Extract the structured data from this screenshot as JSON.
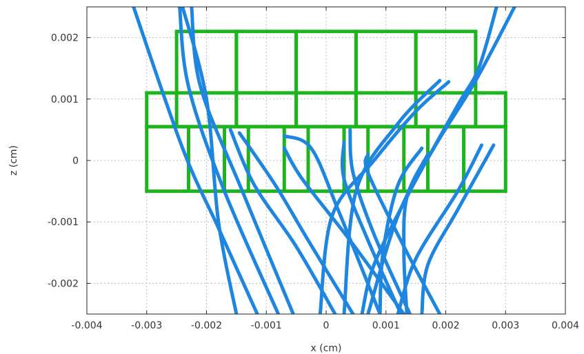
{
  "chart_data": {
    "type": "line",
    "title": "",
    "xlabel": "x (cm)",
    "ylabel": "z (cm)",
    "xlim": [
      -0.004,
      0.004
    ],
    "ylim": [
      -0.0025,
      0.0025
    ],
    "x_ticks": [
      -0.004,
      -0.003,
      -0.002,
      -0.001,
      0,
      0.001,
      0.002,
      0.003,
      0.004
    ],
    "x_tick_labels": [
      "-0.004",
      "-0.003",
      "-0.002",
      "-0.001",
      "0",
      "0.001",
      "0.002",
      "0.003",
      "0.004"
    ],
    "y_ticks": [
      0.002,
      0.001,
      0,
      -0.001,
      -0.002
    ],
    "y_tick_labels": [
      "0.002",
      "0.001",
      "0",
      "-0.001",
      "-0.002"
    ],
    "grid": true,
    "colors": {
      "structure": "#1db41d",
      "tracks": "#1f86e0"
    },
    "detector_boxes": [
      {
        "x": [
          -0.0025,
          -0.0015
        ],
        "z": [
          0.00055,
          0.0021
        ]
      },
      {
        "x": [
          -0.0015,
          -0.0005
        ],
        "z": [
          0.00055,
          0.0021
        ]
      },
      {
        "x": [
          -0.0005,
          0.0005
        ],
        "z": [
          0.00055,
          0.0021
        ]
      },
      {
        "x": [
          0.0005,
          0.0015
        ],
        "z": [
          0.00055,
          0.0021
        ]
      },
      {
        "x": [
          0.0015,
          0.0025
        ],
        "z": [
          0.00055,
          0.0021
        ]
      },
      {
        "x": [
          -0.003,
          0.003
        ],
        "z": [
          0.00055,
          0.0011
        ]
      },
      {
        "x": [
          -0.003,
          0.003
        ],
        "z": [
          -0.0005,
          0.00055
        ]
      },
      {
        "x": [
          -0.0023,
          -0.0023
        ],
        "z": [
          -0.0005,
          0.00055
        ]
      },
      {
        "x": [
          -0.0017,
          -0.0017
        ],
        "z": [
          -0.0005,
          0.00055
        ]
      },
      {
        "x": [
          -0.0013,
          -0.0013
        ],
        "z": [
          -0.0005,
          0.00055
        ]
      },
      {
        "x": [
          -0.0007,
          -0.0007
        ],
        "z": [
          -0.0005,
          0.00055
        ]
      },
      {
        "x": [
          -0.0003,
          -0.0003
        ],
        "z": [
          -0.0005,
          0.00055
        ]
      },
      {
        "x": [
          0.0003,
          0.0003
        ],
        "z": [
          -0.0005,
          0.00055
        ]
      },
      {
        "x": [
          0.0007,
          0.0007
        ],
        "z": [
          -0.0005,
          0.00055
        ]
      },
      {
        "x": [
          0.0013,
          0.0013
        ],
        "z": [
          -0.0005,
          0.00055
        ]
      },
      {
        "x": [
          0.0017,
          0.0017
        ],
        "z": [
          -0.0005,
          0.00055
        ]
      },
      {
        "x": [
          0.0023,
          0.0023
        ],
        "z": [
          -0.0005,
          0.00055
        ]
      }
    ],
    "series": [
      {
        "points": [
          [
            -0.00322,
            0.0025
          ],
          [
            -0.0024,
            0.0002
          ],
          [
            -0.0018,
            -0.0011
          ],
          [
            -0.00115,
            -0.0025
          ]
        ]
      },
      {
        "points": [
          [
            -0.00245,
            0.0025
          ],
          [
            -0.0023,
            0.0012
          ],
          [
            -0.0017,
            -0.0005
          ],
          [
            -0.0008,
            -0.0025
          ]
        ]
      },
      {
        "points": [
          [
            -0.00225,
            0.0025
          ],
          [
            -0.0021,
            0.0012
          ],
          [
            -0.0014,
            -0.0005
          ],
          [
            -0.00055,
            -0.0025
          ]
        ]
      },
      {
        "points": [
          [
            -0.0024,
            0.0025
          ],
          [
            -0.002,
            0.001
          ],
          [
            -0.0018,
            -0.001
          ],
          [
            -0.0015,
            -0.0025
          ]
        ]
      },
      {
        "points": [
          [
            -0.0016,
            0.0005
          ],
          [
            -0.0012,
            -0.0004
          ],
          [
            -0.0005,
            -0.0014
          ],
          [
            0.00015,
            -0.0025
          ]
        ]
      },
      {
        "points": [
          [
            -0.00145,
            0.00045
          ],
          [
            -0.00085,
            -0.0004
          ],
          [
            -0.0003,
            -0.0013
          ],
          [
            0.00045,
            -0.0025
          ]
        ]
      },
      {
        "points": [
          [
            -0.0007,
            0.0004
          ],
          [
            -0.00025,
            0.0002
          ],
          [
            0.0002,
            -0.0008
          ],
          [
            0.0009,
            -0.0025
          ]
        ]
      },
      {
        "points": [
          [
            -0.0007,
            0.0002
          ],
          [
            -0.0004,
            -0.0003
          ],
          [
            0.0004,
            -0.0013
          ],
          [
            0.0013,
            -0.0025
          ]
        ]
      },
      {
        "points": [
          [
            0.0003,
            0.0003
          ],
          [
            0.0003,
            -0.0003
          ],
          [
            0.0007,
            -0.0013
          ],
          [
            0.00125,
            -0.0025
          ]
        ]
      },
      {
        "points": [
          [
            0.0004,
            0.0005
          ],
          [
            0.00045,
            -0.0002
          ],
          [
            0.0008,
            -0.0012
          ],
          [
            0.0014,
            -0.0025
          ]
        ]
      },
      {
        "points": [
          [
            0.0007,
            0.0001
          ],
          [
            0.0007,
            -0.0002
          ],
          [
            0.0013,
            -0.0014
          ],
          [
            0.0019,
            -0.0025
          ]
        ]
      },
      {
        "points": [
          [
            0.00205,
            0.00128
          ],
          [
            0.0015,
            0.0008
          ],
          [
            0.0008,
            0.0
          ],
          [
            0.0001,
            -0.0009
          ],
          [
            -0.0001,
            -0.0025
          ]
        ]
      },
      {
        "points": [
          [
            0.0019,
            0.0013
          ],
          [
            0.0012,
            0.0006
          ],
          [
            0.0005,
            -0.0005
          ],
          [
            0.0003,
            -0.0025
          ]
        ]
      },
      {
        "points": [
          [
            0.0016,
            0.0002
          ],
          [
            0.0012,
            -0.0004
          ],
          [
            0.00095,
            -0.0015
          ],
          [
            0.0009,
            -0.0025
          ]
        ]
      },
      {
        "points": [
          [
            0.0017,
            0.0001
          ],
          [
            0.00135,
            -0.0006
          ],
          [
            0.0013,
            -0.0015
          ],
          [
            0.00135,
            -0.0025
          ]
        ]
      },
      {
        "points": [
          [
            0.0026,
            0.00025
          ],
          [
            0.0022,
            -0.0005
          ],
          [
            0.0015,
            -0.0016
          ],
          [
            0.0012,
            -0.0025
          ]
        ]
      },
      {
        "points": [
          [
            0.0028,
            0.00025
          ],
          [
            0.0022,
            -0.0008
          ],
          [
            0.0017,
            -0.0017
          ],
          [
            0.0016,
            -0.0025
          ]
        ]
      },
      {
        "points": [
          [
            0.00285,
            0.0025
          ],
          [
            0.00255,
            0.0015
          ],
          [
            0.0022,
            0.0009
          ],
          [
            0.0014,
            -0.0005
          ],
          [
            0.0008,
            -0.0017
          ],
          [
            0.0006,
            -0.0025
          ]
        ]
      },
      {
        "points": [
          [
            0.00315,
            0.0025
          ],
          [
            0.0025,
            0.0013
          ],
          [
            0.0018,
            0.0002
          ],
          [
            0.0012,
            -0.0009
          ],
          [
            0.0007,
            -0.0025
          ]
        ]
      }
    ]
  }
}
